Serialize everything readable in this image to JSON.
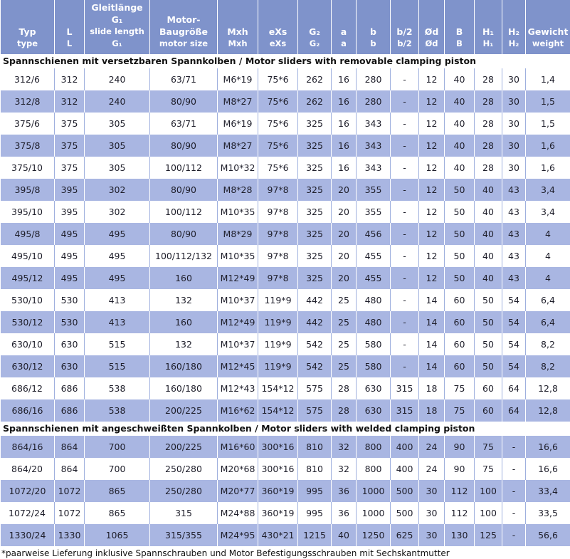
{
  "header": [
    {
      "top": "Typ",
      "bottom": "type"
    },
    {
      "top": "L",
      "bottom": "L"
    },
    {
      "top": "Gleitlänge G₁",
      "bottom": "slide length G₁"
    },
    {
      "top": "Motor-\nBaugröße",
      "bottom": "motor size"
    },
    {
      "top": "Mxh",
      "bottom": "Mxh"
    },
    {
      "top": "eXs",
      "bottom": "eXs"
    },
    {
      "top": "G₂",
      "bottom": "G₂"
    },
    {
      "top": "a",
      "bottom": "a"
    },
    {
      "top": "b",
      "bottom": "b"
    },
    {
      "top": "b/2",
      "bottom": "b/2"
    },
    {
      "top": "Ød",
      "bottom": "Ød"
    },
    {
      "top": "B",
      "bottom": "B"
    },
    {
      "top": "H₁",
      "bottom": "H₁"
    },
    {
      "top": "H₂",
      "bottom": "H₂"
    },
    {
      "top": "Gewicht",
      "bottom": "weight"
    }
  ],
  "sections": [
    {
      "title": "Spannschienen mit versetzbaren Spannkolben / Motor sliders with removable clamping piston",
      "rows": [
        [
          "312/6",
          "312",
          "240",
          "63/71",
          "M6*19",
          "75*6",
          "262",
          "16",
          "280",
          "-",
          "12",
          "40",
          "28",
          "30",
          "1,4"
        ],
        [
          "312/8",
          "312",
          "240",
          "80/90",
          "M8*27",
          "75*6",
          "262",
          "16",
          "280",
          "-",
          "12",
          "40",
          "28",
          "30",
          "1,5"
        ],
        [
          "375/6",
          "375",
          "305",
          "63/71",
          "M6*19",
          "75*6",
          "325",
          "16",
          "343",
          "-",
          "12",
          "40",
          "28",
          "30",
          "1,5"
        ],
        [
          "375/8",
          "375",
          "305",
          "80/90",
          "M8*27",
          "75*6",
          "325",
          "16",
          "343",
          "-",
          "12",
          "40",
          "28",
          "30",
          "1,6"
        ],
        [
          "375/10",
          "375",
          "305",
          "100/112",
          "M10*32",
          "75*6",
          "325",
          "16",
          "343",
          "-",
          "12",
          "40",
          "28",
          "30",
          "1,6"
        ],
        [
          "395/8",
          "395",
          "302",
          "80/90",
          "M8*28",
          "97*8",
          "325",
          "20",
          "355",
          "-",
          "12",
          "50",
          "40",
          "43",
          "3,4"
        ],
        [
          "395/10",
          "395",
          "302",
          "100/112",
          "M10*35",
          "97*8",
          "325",
          "20",
          "355",
          "-",
          "12",
          "50",
          "40",
          "43",
          "3,4"
        ],
        [
          "495/8",
          "495",
          "495",
          "80/90",
          "M8*29",
          "97*8",
          "325",
          "20",
          "456",
          "-",
          "12",
          "50",
          "40",
          "43",
          "4"
        ],
        [
          "495/10",
          "495",
          "495",
          "100/112/132",
          "M10*35",
          "97*8",
          "325",
          "20",
          "455",
          "-",
          "12",
          "50",
          "40",
          "43",
          "4"
        ],
        [
          "495/12",
          "495",
          "495",
          "160",
          "M12*49",
          "97*8",
          "325",
          "20",
          "455",
          "-",
          "12",
          "50",
          "40",
          "43",
          "4"
        ],
        [
          "530/10",
          "530",
          "413",
          "132",
          "M10*37",
          "119*9",
          "442",
          "25",
          "480",
          "-",
          "14",
          "60",
          "50",
          "54",
          "6,4"
        ],
        [
          "530/12",
          "530",
          "413",
          "160",
          "M12*49",
          "119*9",
          "442",
          "25",
          "480",
          "-",
          "14",
          "60",
          "50",
          "54",
          "6,4"
        ],
        [
          "630/10",
          "630",
          "515",
          "132",
          "M10*37",
          "119*9",
          "542",
          "25",
          "580",
          "-",
          "14",
          "60",
          "50",
          "54",
          "8,2"
        ],
        [
          "630/12",
          "630",
          "515",
          "160/180",
          "M12*45",
          "119*9",
          "542",
          "25",
          "580",
          "-",
          "14",
          "60",
          "50",
          "54",
          "8,2"
        ],
        [
          "686/12",
          "686",
          "538",
          "160/180",
          "M12*43",
          "154*12",
          "575",
          "28",
          "630",
          "315",
          "18",
          "75",
          "60",
          "64",
          "12,8"
        ],
        [
          "686/16",
          "686",
          "538",
          "200/225",
          "M16*62",
          "154*12",
          "575",
          "28",
          "630",
          "315",
          "18",
          "75",
          "60",
          "64",
          "12,8"
        ]
      ]
    },
    {
      "title": "Spannschienen mit angeschweißten Spannkolben / Motor sliders with welded clamping piston",
      "rows": [
        [
          "864/16",
          "864",
          "700",
          "200/225",
          "M16*60",
          "300*16",
          "810",
          "32",
          "800",
          "400",
          "24",
          "90",
          "75",
          "-",
          "16,6"
        ],
        [
          "864/20",
          "864",
          "700",
          "250/280",
          "M20*68",
          "300*16",
          "810",
          "32",
          "800",
          "400",
          "24",
          "90",
          "75",
          "-",
          "16,6"
        ],
        [
          "1072/20",
          "1072",
          "865",
          "250/280",
          "M20*77",
          "360*19",
          "995",
          "36",
          "1000",
          "500",
          "30",
          "112",
          "100",
          "-",
          "33,4"
        ],
        [
          "1072/24",
          "1072",
          "865",
          "315",
          "M24*88",
          "360*19",
          "995",
          "36",
          "1000",
          "500",
          "30",
          "112",
          "100",
          "-",
          "33,5"
        ],
        [
          "1330/24",
          "1330",
          "1065",
          "315/355",
          "M24*95",
          "430*21",
          "1215",
          "40",
          "1250",
          "625",
          "30",
          "130",
          "125",
          "-",
          "56,6"
        ]
      ]
    }
  ],
  "footnote": "*paarweise Lieferung inklusive Spannschrauben und Motor Befestigungsschrauben mit Sechskantmutter"
}
